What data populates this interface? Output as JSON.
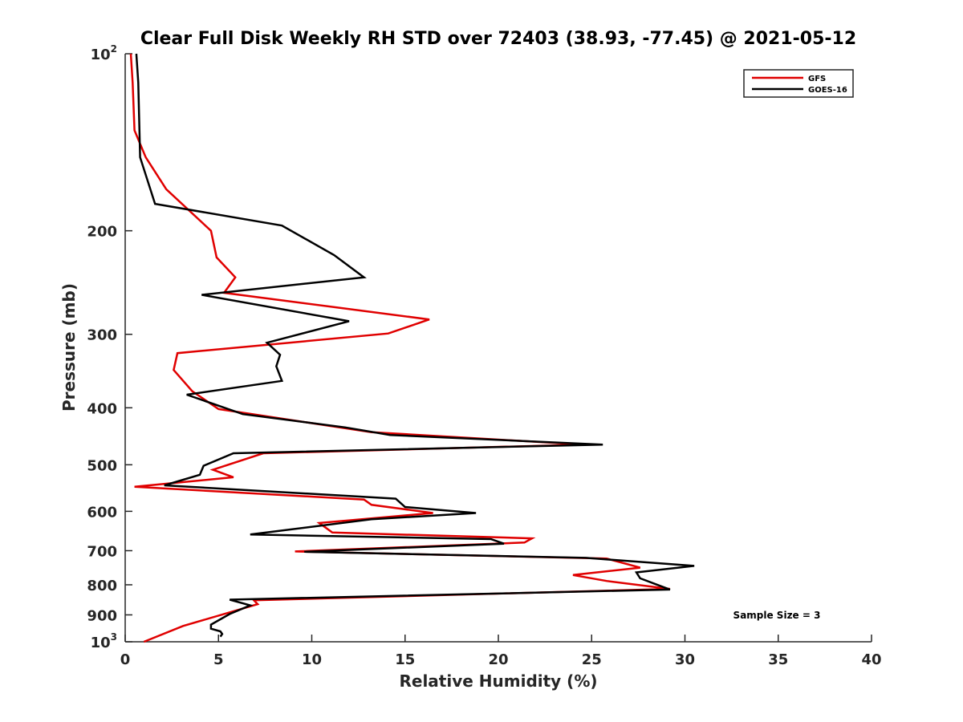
{
  "chart_data": {
    "type": "line",
    "title": "Clear Full Disk Weekly RH STD over 72403 (38.93, -77.45) @ 2021-05-12",
    "xlabel": "Relative Humidity (%)",
    "ylabel": "Pressure (mb)",
    "xlim": [
      0,
      40
    ],
    "ylim": [
      100,
      1000
    ],
    "yscale": "log",
    "y_reversed": true,
    "grid": false,
    "legend_position": "top-right",
    "x_ticks": [
      "0",
      "5",
      "10",
      "15",
      "20",
      "25",
      "30",
      "35",
      "40"
    ],
    "y_ticks": [
      {
        "value": 100,
        "base": "10",
        "exp": "2"
      },
      {
        "value": 200,
        "label": "200"
      },
      {
        "value": 300,
        "label": "300"
      },
      {
        "value": 400,
        "label": "400"
      },
      {
        "value": 500,
        "label": "500"
      },
      {
        "value": 600,
        "label": "600"
      },
      {
        "value": 700,
        "label": "700"
      },
      {
        "value": 800,
        "label": "800"
      },
      {
        "value": 900,
        "label": "900"
      },
      {
        "value": 1000,
        "base": "10",
        "exp": "3"
      }
    ],
    "annotation": "Sample Size = 3",
    "series": [
      {
        "name": "GFS",
        "color": "#e00000",
        "points": [
          [
            0.3,
            100
          ],
          [
            0.4,
            112
          ],
          [
            0.5,
            135
          ],
          [
            1.1,
            150
          ],
          [
            2.2,
            170
          ],
          [
            4.6,
            200
          ],
          [
            4.9,
            222
          ],
          [
            5.9,
            240
          ],
          [
            5.3,
            255
          ],
          [
            16.3,
            283
          ],
          [
            14.1,
            299
          ],
          [
            2.8,
            323
          ],
          [
            2.6,
            345
          ],
          [
            3.6,
            375
          ],
          [
            5.0,
            402
          ],
          [
            13.2,
            440
          ],
          [
            24.6,
            462
          ],
          [
            7.4,
            478
          ],
          [
            4.7,
            510
          ],
          [
            5.8,
            525
          ],
          [
            0.5,
            545
          ],
          [
            12.8,
            573
          ],
          [
            13.2,
            585
          ],
          [
            16.5,
            604
          ],
          [
            10.4,
            628
          ],
          [
            11.1,
            652
          ],
          [
            21.8,
            667
          ],
          [
            21.4,
            678
          ],
          [
            9.1,
            702
          ],
          [
            25.8,
            722
          ],
          [
            27.6,
            748
          ],
          [
            24.0,
            770
          ],
          [
            25.8,
            788
          ],
          [
            29.2,
            813
          ],
          [
            6.9,
            850
          ],
          [
            7.1,
            863
          ],
          [
            6.3,
            878
          ],
          [
            3.1,
            940
          ],
          [
            1.0,
            1000
          ]
        ]
      },
      {
        "name": "GOES-16",
        "color": "#000000",
        "points": [
          [
            0.6,
            100
          ],
          [
            0.7,
            112
          ],
          [
            0.8,
            150
          ],
          [
            1.6,
            180
          ],
          [
            8.4,
            196
          ],
          [
            11.2,
            220
          ],
          [
            12.8,
            240
          ],
          [
            4.1,
            257
          ],
          [
            12.0,
            285
          ],
          [
            7.6,
            310
          ],
          [
            8.3,
            325
          ],
          [
            8.1,
            340
          ],
          [
            8.4,
            360
          ],
          [
            3.3,
            380
          ],
          [
            6.3,
            410
          ],
          [
            11.8,
            432
          ],
          [
            14.2,
            445
          ],
          [
            25.6,
            462
          ],
          [
            5.8,
            478
          ],
          [
            4.2,
            502
          ],
          [
            4.0,
            520
          ],
          [
            2.1,
            542
          ],
          [
            14.5,
            571
          ],
          [
            15.0,
            590
          ],
          [
            18.8,
            604
          ],
          [
            13.2,
            619
          ],
          [
            6.7,
            657
          ],
          [
            19.6,
            669
          ],
          [
            20.3,
            681
          ],
          [
            9.6,
            703
          ],
          [
            24.7,
            720
          ],
          [
            30.5,
            743
          ],
          [
            27.4,
            762
          ],
          [
            27.6,
            780
          ],
          [
            29.2,
            815
          ],
          [
            5.6,
            848
          ],
          [
            6.7,
            867
          ],
          [
            5.6,
            897
          ],
          [
            4.6,
            935
          ],
          [
            4.6,
            950
          ],
          [
            5.1,
            960
          ],
          [
            5.2,
            970
          ],
          [
            5.1,
            980
          ]
        ]
      }
    ]
  }
}
